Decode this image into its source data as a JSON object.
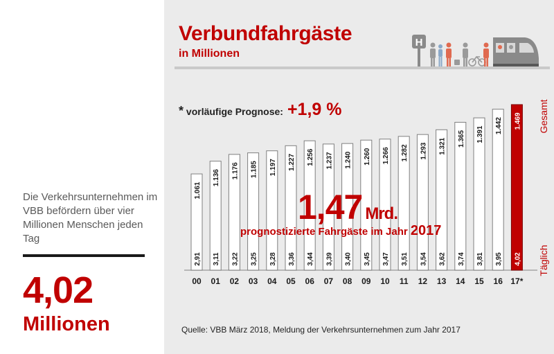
{
  "header": {
    "title": "Verbundfahrgäste",
    "subtitle": "in Millionen"
  },
  "prognosis": {
    "star": "*",
    "label": "vorläufige Prognose:",
    "value": "+1,9 %"
  },
  "highlight": {
    "value": "1,47",
    "unit": "Mrd.",
    "text": "prognostizierte Fahrgäste im Jahr",
    "year": "2017"
  },
  "labels": {
    "total": "Gesamt",
    "daily": "Täglich"
  },
  "source": "Quelle:  VBB März 2018, Meldung der Verkehrsunternehmen  zum Jahr 2017",
  "sidebar": {
    "text": "Die Verkehrsunternehmen im VBB befördern über vier Millionen Menschen jeden Tag",
    "value": "4,02",
    "unit": "Millionen"
  },
  "colors": {
    "accent": "#c00000",
    "bar_fill": "#ffffff",
    "background": "#ebebeb"
  },
  "icons": [
    "bus-stop-sign-icon",
    "people-icon",
    "cyclist-icon",
    "train-icon"
  ],
  "chart_data": {
    "type": "bar",
    "categories": [
      "00",
      "01",
      "02",
      "03",
      "04",
      "05",
      "06",
      "07",
      "08",
      "09",
      "10",
      "11",
      "12",
      "13",
      "14",
      "15",
      "16",
      "17*"
    ],
    "series": [
      {
        "name": "Gesamt",
        "values": [
          1061,
          1136,
          1176,
          1185,
          1197,
          1227,
          1256,
          1237,
          1240,
          1260,
          1266,
          1282,
          1293,
          1321,
          1365,
          1391,
          1442,
          1469
        ],
        "labels": [
          "1.061",
          "1.136",
          "1.176",
          "1.185",
          "1.197",
          "1.227",
          "1.256",
          "1.237",
          "1.240",
          "1.260",
          "1.266",
          "1.282",
          "1.293",
          "1.321",
          "1.365",
          "1.391",
          "1.442",
          "1.469"
        ]
      },
      {
        "name": "Täglich",
        "values": [
          2.91,
          3.11,
          3.22,
          3.25,
          3.28,
          3.36,
          3.44,
          3.39,
          3.4,
          3.45,
          3.47,
          3.51,
          3.54,
          3.62,
          3.74,
          3.81,
          3.95,
          4.02
        ],
        "labels": [
          "2,91",
          "3,11",
          "3,22",
          "3,25",
          "3,28",
          "3,36",
          "3,44",
          "3,39",
          "3,40",
          "3,45",
          "3,47",
          "3,51",
          "3,54",
          "3,62",
          "3,74",
          "3,81",
          "3,95",
          "4,02"
        ]
      }
    ],
    "highlight_index": 17,
    "ylim": [
      0,
      1500
    ],
    "title": "Verbundfahrgäste",
    "subtitle": "in Millionen"
  }
}
